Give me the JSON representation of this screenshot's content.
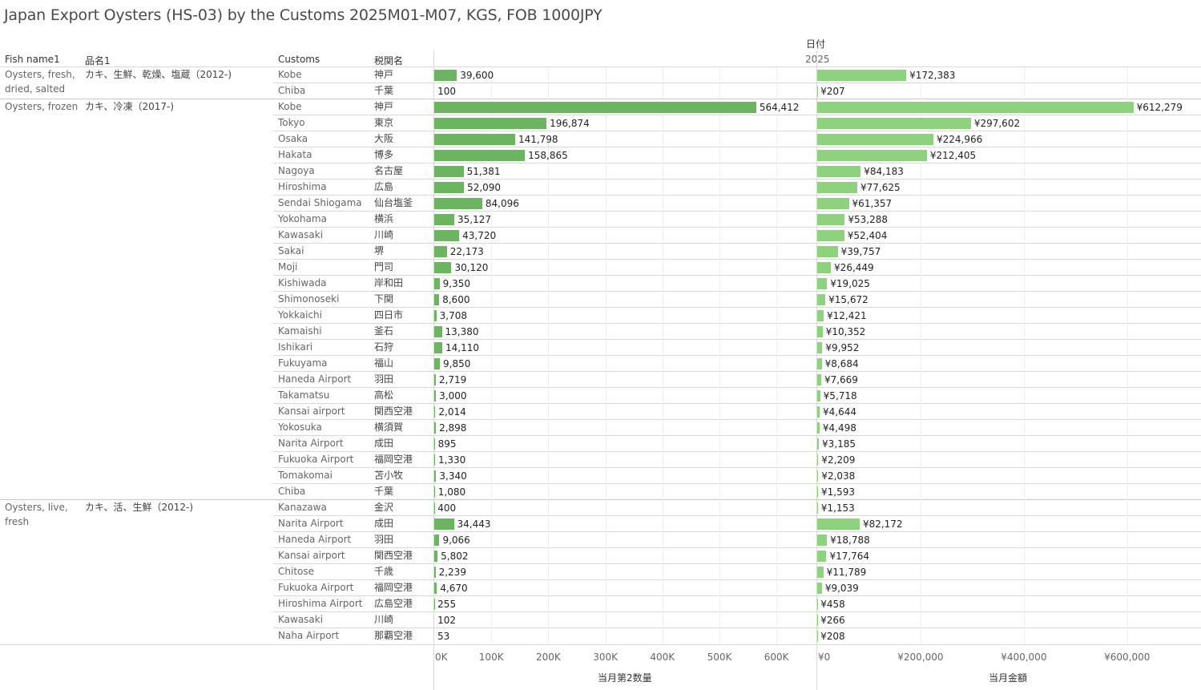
{
  "title": "Japan Export Oysters (HS-03) by the Customs 2025M01-M07, KGS, FOB 1000JPY",
  "headers": {
    "fish_name": "Fish name1",
    "hinmei": "品名1",
    "customs": "Customs",
    "zeikan": "税関名",
    "date_field": "日付",
    "year": "2025"
  },
  "groups": [
    {
      "fish_name": "Oysters, fresh, dried, salted",
      "hinmei": "カキ、生鮮、乾燥、塩蔵（2012-)",
      "start": 0,
      "count": 2
    },
    {
      "fish_name": "Oysters, frozen",
      "hinmei": "カキ、冷凍（2017-)",
      "start": 2,
      "count": 25
    },
    {
      "fish_name": "Oysters, live, fresh",
      "hinmei": "カキ、活、生鮮（2012-)",
      "start": 27,
      "count": 8
    }
  ],
  "chart_data": {
    "type": "bar",
    "orientation": "horizontal",
    "categories": [
      {
        "customs": "Kobe",
        "jp": "神戸"
      },
      {
        "customs": "Chiba",
        "jp": "千葉"
      },
      {
        "customs": "Kobe",
        "jp": "神戸"
      },
      {
        "customs": "Tokyo",
        "jp": "東京"
      },
      {
        "customs": "Osaka",
        "jp": "大阪"
      },
      {
        "customs": "Hakata",
        "jp": "博多"
      },
      {
        "customs": "Nagoya",
        "jp": "名古屋"
      },
      {
        "customs": "Hiroshima",
        "jp": "広島"
      },
      {
        "customs": "Sendai Shiogama",
        "jp": "仙台塩釜"
      },
      {
        "customs": "Yokohama",
        "jp": "横浜"
      },
      {
        "customs": "Kawasaki",
        "jp": "川崎"
      },
      {
        "customs": "Sakai",
        "jp": "堺"
      },
      {
        "customs": "Moji",
        "jp": "門司"
      },
      {
        "customs": "Kishiwada",
        "jp": "岸和田"
      },
      {
        "customs": "Shimonoseki",
        "jp": "下関"
      },
      {
        "customs": "Yokkaichi",
        "jp": "四日市"
      },
      {
        "customs": "Kamaishi",
        "jp": "釜石"
      },
      {
        "customs": "Ishikari",
        "jp": "石狩"
      },
      {
        "customs": "Fukuyama",
        "jp": "福山"
      },
      {
        "customs": "Haneda Airport",
        "jp": "羽田"
      },
      {
        "customs": "Takamatsu",
        "jp": "高松"
      },
      {
        "customs": "Kansai airport",
        "jp": "関西空港"
      },
      {
        "customs": "Yokosuka",
        "jp": "横須賀"
      },
      {
        "customs": "Narita Airport",
        "jp": "成田"
      },
      {
        "customs": "Fukuoka Airport",
        "jp": "福岡空港"
      },
      {
        "customs": "Tomakomai",
        "jp": "苫小牧"
      },
      {
        "customs": "Chiba",
        "jp": "千葉"
      },
      {
        "customs": "Kanazawa",
        "jp": "金沢"
      },
      {
        "customs": "Narita Airport",
        "jp": "成田"
      },
      {
        "customs": "Haneda Airport",
        "jp": "羽田"
      },
      {
        "customs": "Kansai airport",
        "jp": "関西空港"
      },
      {
        "customs": "Chitose",
        "jp": "千歳"
      },
      {
        "customs": "Fukuoka Airport",
        "jp": "福岡空港"
      },
      {
        "customs": "Hiroshima Airport",
        "jp": "広島空港"
      },
      {
        "customs": "Kawasaki",
        "jp": "川崎"
      },
      {
        "customs": "Naha Airport",
        "jp": "那覇空港"
      }
    ],
    "series": [
      {
        "name": "当月第2数量",
        "color": "#6bb560",
        "values": [
          39600,
          100,
          564412,
          196874,
          141798,
          158865,
          51381,
          52090,
          84096,
          35127,
          43720,
          22173,
          30120,
          9350,
          8600,
          3708,
          13380,
          14110,
          9850,
          2719,
          3000,
          2014,
          2898,
          895,
          1330,
          3340,
          1080,
          400,
          34443,
          9066,
          5802,
          2239,
          4670,
          255,
          102,
          53
        ],
        "labels": [
          "39,600",
          "100",
          "564,412",
          "196,874",
          "141,798",
          "158,865",
          "51,381",
          "52,090",
          "84,096",
          "35,127",
          "43,720",
          "22,173",
          "30,120",
          "9,350",
          "8,600",
          "3,708",
          "13,380",
          "14,110",
          "9,850",
          "2,719",
          "3,000",
          "2,014",
          "2,898",
          "895",
          "1,330",
          "3,340",
          "1,080",
          "400",
          "34,443",
          "9,066",
          "5,802",
          "2,239",
          "4,670",
          "255",
          "102",
          "53"
        ],
        "axis_max": 670000,
        "ticks": [
          0,
          100000,
          200000,
          300000,
          400000,
          500000,
          600000
        ],
        "tick_labels": [
          "0K",
          "100K",
          "200K",
          "300K",
          "400K",
          "500K",
          "600K"
        ]
      },
      {
        "name": "当月金額",
        "color": "#8fd27e",
        "values": [
          172383,
          207,
          612279,
          297602,
          224966,
          212405,
          84183,
          77625,
          61357,
          53288,
          52404,
          39757,
          26449,
          19025,
          15672,
          12421,
          10352,
          9952,
          8684,
          7669,
          5718,
          4644,
          4498,
          3185,
          2209,
          2038,
          1593,
          1153,
          82172,
          18788,
          17764,
          11789,
          9039,
          458,
          266,
          208
        ],
        "labels": [
          "¥172,383",
          "¥207",
          "¥612,279",
          "¥297,602",
          "¥224,966",
          "¥212,405",
          "¥84,183",
          "¥77,625",
          "¥61,357",
          "¥53,288",
          "¥52,404",
          "¥39,757",
          "¥26,449",
          "¥19,025",
          "¥15,672",
          "¥12,421",
          "¥10,352",
          "¥9,952",
          "¥8,684",
          "¥7,669",
          "¥5,718",
          "¥4,644",
          "¥4,498",
          "¥3,185",
          "¥2,209",
          "¥2,038",
          "¥1,593",
          "¥1,153",
          "¥82,172",
          "¥18,788",
          "¥17,764",
          "¥11,789",
          "¥9,039",
          "¥458",
          "¥266",
          "¥208"
        ],
        "axis_max": 740000,
        "ticks": [
          0,
          200000,
          400000,
          600000
        ],
        "tick_labels": [
          "¥0",
          "¥200,000",
          "¥400,000",
          "¥600,000"
        ]
      }
    ],
    "grid": true
  }
}
